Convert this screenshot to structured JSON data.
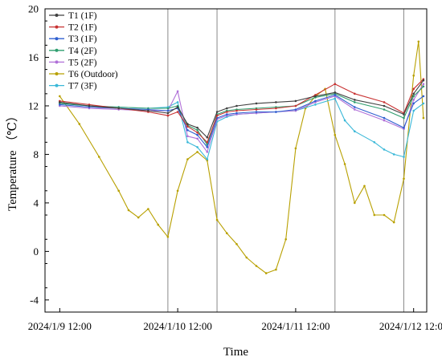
{
  "chart_data": {
    "type": "line",
    "title": "",
    "xlabel": "Time",
    "ylabel": "Temperature （℃）",
    "x_ticks": [
      "2024/1/9 12:00",
      "2024/1/10 12:00",
      "2024/1/11 12:00",
      "2024/1/12 12:00"
    ],
    "y_ticks": [
      -4,
      0,
      4,
      8,
      12,
      16,
      20
    ],
    "ylim": [
      -5,
      20
    ],
    "xlim": [
      "2024/1/9 09:00",
      "2024/1/12 14:40"
    ],
    "grid": false,
    "legend_position": "top-left",
    "reference_lines_x": [
      "2024/1/10 10:00",
      "2024/1/10 20:00",
      "2024/1/11 20:00",
      "2024/1/12 10:00"
    ],
    "series": [
      {
        "name": "T1 (1F)",
        "color": "#404040",
        "x": [
          "2024/1/9 12:00",
          "2024/1/9 18:00",
          "2024/1/10 00:00",
          "2024/1/10 06:00",
          "2024/1/10 10:00",
          "2024/1/10 12:00",
          "2024/1/10 14:00",
          "2024/1/10 16:00",
          "2024/1/10 18:00",
          "2024/1/10 20:00",
          "2024/1/10 22:00",
          "2024/1/11 00:00",
          "2024/1/11 04:00",
          "2024/1/11 08:00",
          "2024/1/11 12:00",
          "2024/1/11 16:00",
          "2024/1/11 20:00",
          "2024/1/12 00:00",
          "2024/1/12 06:00",
          "2024/1/12 10:00",
          "2024/1/12 12:00",
          "2024/1/12 14:00"
        ],
        "values": [
          12.3,
          12.0,
          11.8,
          11.6,
          11.4,
          11.9,
          10.5,
          10.2,
          9.4,
          11.5,
          11.8,
          12.0,
          12.2,
          12.3,
          12.4,
          12.8,
          13.1,
          12.5,
          12.0,
          11.3,
          13.0,
          14.1
        ]
      },
      {
        "name": "T2 (1F)",
        "color": "#c83232",
        "x": [
          "2024/1/9 12:00",
          "2024/1/9 18:00",
          "2024/1/10 00:00",
          "2024/1/10 06:00",
          "2024/1/10 10:00",
          "2024/1/10 12:00",
          "2024/1/10 14:00",
          "2024/1/10 16:00",
          "2024/1/10 18:00",
          "2024/1/10 20:00",
          "2024/1/10 22:00",
          "2024/1/11 00:00",
          "2024/1/11 04:00",
          "2024/1/11 08:00",
          "2024/1/11 12:00",
          "2024/1/11 16:00",
          "2024/1/11 20:00",
          "2024/1/12 00:00",
          "2024/1/12 06:00",
          "2024/1/12 10:00",
          "2024/1/12 12:00",
          "2024/1/12 14:00"
        ],
        "values": [
          12.4,
          12.1,
          11.8,
          11.5,
          11.2,
          11.5,
          10.3,
          9.8,
          9.0,
          11.2,
          11.5,
          11.6,
          11.7,
          11.8,
          12.0,
          12.9,
          13.8,
          13.0,
          12.3,
          11.4,
          13.4,
          14.2
        ]
      },
      {
        "name": "T3 (1F)",
        "color": "#2f5fd0",
        "x": [
          "2024/1/9 12:00",
          "2024/1/9 18:00",
          "2024/1/10 00:00",
          "2024/1/10 06:00",
          "2024/1/10 10:00",
          "2024/1/10 12:00",
          "2024/1/10 14:00",
          "2024/1/10 16:00",
          "2024/1/10 18:00",
          "2024/1/10 20:00",
          "2024/1/10 22:00",
          "2024/1/11 00:00",
          "2024/1/11 04:00",
          "2024/1/11 08:00",
          "2024/1/11 12:00",
          "2024/1/11 16:00",
          "2024/1/11 20:00",
          "2024/1/12 00:00",
          "2024/1/12 06:00",
          "2024/1/12 10:00",
          "2024/1/12 12:00",
          "2024/1/12 14:00"
        ],
        "values": [
          12.1,
          11.9,
          11.8,
          11.7,
          11.6,
          11.8,
          10.0,
          9.6,
          8.6,
          11.0,
          11.3,
          11.4,
          11.5,
          11.5,
          11.7,
          12.4,
          12.9,
          11.9,
          11.0,
          10.2,
          12.2,
          12.8
        ]
      },
      {
        "name": "T4 (2F)",
        "color": "#2e9e6e",
        "x": [
          "2024/1/9 12:00",
          "2024/1/9 18:00",
          "2024/1/10 00:00",
          "2024/1/10 06:00",
          "2024/1/10 10:00",
          "2024/1/10 12:00",
          "2024/1/10 14:00",
          "2024/1/10 16:00",
          "2024/1/10 18:00",
          "2024/1/10 20:00",
          "2024/1/10 22:00",
          "2024/1/11 00:00",
          "2024/1/11 04:00",
          "2024/1/11 08:00",
          "2024/1/11 12:00",
          "2024/1/11 16:00",
          "2024/1/11 20:00",
          "2024/1/12 00:00",
          "2024/1/12 06:00",
          "2024/1/12 10:00",
          "2024/1/12 12:00",
          "2024/1/12 14:00"
        ],
        "values": [
          12.2,
          12.0,
          11.9,
          11.8,
          11.8,
          12.0,
          10.4,
          10.0,
          8.8,
          11.3,
          11.6,
          11.7,
          11.8,
          11.9,
          12.0,
          12.7,
          13.0,
          12.3,
          11.7,
          11.0,
          12.8,
          13.6
        ]
      },
      {
        "name": "T5 (2F)",
        "color": "#b070d8",
        "x": [
          "2024/1/9 12:00",
          "2024/1/9 18:00",
          "2024/1/10 00:00",
          "2024/1/10 06:00",
          "2024/1/10 10:00",
          "2024/1/10 12:00",
          "2024/1/10 14:00",
          "2024/1/10 16:00",
          "2024/1/10 18:00",
          "2024/1/10 20:00",
          "2024/1/10 22:00",
          "2024/1/11 00:00",
          "2024/1/11 04:00",
          "2024/1/11 08:00",
          "2024/1/11 12:00",
          "2024/1/11 16:00",
          "2024/1/11 20:00",
          "2024/1/12 00:00",
          "2024/1/12 06:00",
          "2024/1/12 10:00",
          "2024/1/12 12:00",
          "2024/1/12 14:00"
        ],
        "values": [
          12.0,
          11.8,
          11.7,
          11.6,
          11.6,
          13.2,
          9.5,
          9.3,
          8.2,
          10.9,
          11.2,
          11.3,
          11.4,
          11.5,
          11.6,
          12.3,
          12.8,
          11.7,
          10.8,
          10.1,
          12.5,
          13.8
        ]
      },
      {
        "name": "T6 (Outdoor)",
        "color": "#b8a000",
        "x": [
          "2024/1/9 12:00",
          "2024/1/9 16:00",
          "2024/1/9 20:00",
          "2024/1/10 00:00",
          "2024/1/10 02:00",
          "2024/1/10 04:00",
          "2024/1/10 06:00",
          "2024/1/10 08:00",
          "2024/1/10 10:00",
          "2024/1/10 12:00",
          "2024/1/10 14:00",
          "2024/1/10 16:00",
          "2024/1/10 18:00",
          "2024/1/10 20:00",
          "2024/1/10 22:00",
          "2024/1/11 00:00",
          "2024/1/11 02:00",
          "2024/1/11 04:00",
          "2024/1/11 06:00",
          "2024/1/11 08:00",
          "2024/1/11 10:00",
          "2024/1/11 12:00",
          "2024/1/11 14:00",
          "2024/1/11 16:00",
          "2024/1/11 18:00",
          "2024/1/11 20:00",
          "2024/1/11 22:00",
          "2024/1/12 00:00",
          "2024/1/12 02:00",
          "2024/1/12 04:00",
          "2024/1/12 06:00",
          "2024/1/12 08:00",
          "2024/1/12 10:00",
          "2024/1/12 12:00",
          "2024/1/12 13:00",
          "2024/1/12 14:00"
        ],
        "values": [
          12.8,
          10.5,
          7.8,
          5.0,
          3.4,
          2.8,
          3.5,
          2.2,
          1.2,
          5.0,
          7.6,
          8.2,
          7.5,
          2.6,
          1.5,
          0.6,
          -0.5,
          -1.2,
          -1.8,
          -1.5,
          1.0,
          8.5,
          11.8,
          12.8,
          13.4,
          9.6,
          7.2,
          4.0,
          5.4,
          3.0,
          3.0,
          2.4,
          6.0,
          14.5,
          17.3,
          11.0
        ]
      },
      {
        "name": "T7 (3F)",
        "color": "#3ab8d8",
        "x": [
          "2024/1/9 12:00",
          "2024/1/9 18:00",
          "2024/1/10 00:00",
          "2024/1/10 06:00",
          "2024/1/10 10:00",
          "2024/1/10 12:00",
          "2024/1/10 14:00",
          "2024/1/10 16:00",
          "2024/1/10 18:00",
          "2024/1/10 20:00",
          "2024/1/10 22:00",
          "2024/1/11 00:00",
          "2024/1/11 04:00",
          "2024/1/11 08:00",
          "2024/1/11 12:00",
          "2024/1/11 16:00",
          "2024/1/11 20:00",
          "2024/1/11 22:00",
          "2024/1/12 00:00",
          "2024/1/12 04:00",
          "2024/1/12 06:00",
          "2024/1/12 08:00",
          "2024/1/12 10:00",
          "2024/1/12 12:00",
          "2024/1/12 14:00"
        ],
        "values": [
          12.2,
          12.0,
          11.9,
          11.8,
          11.9,
          12.3,
          9.0,
          8.6,
          7.6,
          10.7,
          11.1,
          11.3,
          11.4,
          11.5,
          11.6,
          12.1,
          12.6,
          10.8,
          9.9,
          9.0,
          8.4,
          8.0,
          7.8,
          11.6,
          12.2
        ]
      }
    ]
  }
}
